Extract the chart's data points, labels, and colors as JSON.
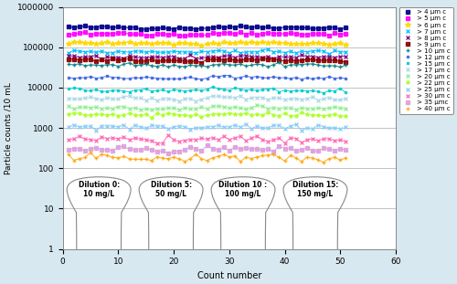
{
  "title": "",
  "xlabel": "Count number",
  "ylabel": "Particle counts /10 mL",
  "xlim": [
    0,
    60
  ],
  "ylim_log": [
    1,
    1000000
  ],
  "x_ticks": [
    0,
    10,
    20,
    30,
    40,
    50,
    60
  ],
  "y_ticks": [
    1,
    10,
    100,
    1000,
    10000,
    100000,
    1000000
  ],
  "y_tick_labels": [
    "1",
    "10",
    "100",
    "1000",
    "10000",
    "100000",
    "1000000"
  ],
  "series": [
    {
      "label": "> 4 μm c",
      "color": "#00008B",
      "marker": "s",
      "base_val": 320000,
      "noise": 0.04,
      "marker_size": 3
    },
    {
      "label": "> 5 μm c",
      "color": "#FF00FF",
      "marker": "s",
      "base_val": 220000,
      "noise": 0.04,
      "marker_size": 3
    },
    {
      "label": "> 6 μm c",
      "color": "#FFD700",
      "marker": "*",
      "base_val": 130000,
      "noise": 0.04,
      "marker_size": 4
    },
    {
      "label": "> 7 μm c",
      "color": "#00BFFF",
      "marker": "x",
      "base_val": 80000,
      "noise": 0.05,
      "marker_size": 3
    },
    {
      "label": "> 8 μm c",
      "color": "#800080",
      "marker": "x",
      "base_val": 60000,
      "noise": 0.05,
      "marker_size": 3
    },
    {
      "label": "> 9 μm c",
      "color": "#8B0000",
      "marker": "s",
      "base_val": 50000,
      "noise": 0.05,
      "marker_size": 3
    },
    {
      "label": "> 10 μm c",
      "color": "#008080",
      "marker": "+",
      "base_val": 38000,
      "noise": 0.05,
      "marker_size": 3
    },
    {
      "label": "> 12 μm c",
      "color": "#4169E1",
      "marker": "s",
      "base_val": 18000,
      "noise": 0.04,
      "marker_size": 2
    },
    {
      "label": "> 15 μm c",
      "color": "#00CED1",
      "marker": "s",
      "base_val": 9000,
      "noise": 0.06,
      "marker_size": 2
    },
    {
      "label": "> 17 μm c",
      "color": "#ADD8E6",
      "marker": "x",
      "base_val": 5500,
      "noise": 0.06,
      "marker_size": 3
    },
    {
      "label": "> 20 μm c",
      "color": "#90EE90",
      "marker": "x",
      "base_val": 3200,
      "noise": 0.06,
      "marker_size": 3
    },
    {
      "label": "> 22 μm c",
      "color": "#ADFF2F",
      "marker": "*",
      "base_val": 2200,
      "noise": 0.06,
      "marker_size": 3
    },
    {
      "label": "> 25 μm c",
      "color": "#87CEFA",
      "marker": "x",
      "base_val": 1100,
      "noise": 0.07,
      "marker_size": 3
    },
    {
      "label": "> 30 μm c",
      "color": "#FF69B4",
      "marker": "x",
      "base_val": 550,
      "noise": 0.09,
      "marker_size": 3
    },
    {
      "label": "> 35 μmc",
      "color": "#DDA0DD",
      "marker": "s",
      "base_val": 300,
      "noise": 0.1,
      "marker_size": 3
    },
    {
      "label": "> 40 μm c",
      "color": "#FFA500",
      "marker": "+",
      "base_val": 190,
      "noise": 0.12,
      "marker_size": 3
    }
  ],
  "dilution_labels": [
    {
      "x_center": 6.5,
      "text": "Dilution 0:\n10 mg/L"
    },
    {
      "x_center": 19.5,
      "text": "Dilution 5:\n50 mg/L"
    },
    {
      "x_center": 32.5,
      "text": "Dilution 10 :\n100 mg/L"
    },
    {
      "x_center": 45.5,
      "text": "Dilution 15:\n150 mg/L"
    }
  ],
  "background_color": "#D8E8F0",
  "plot_bg_color": "#FFFFFF",
  "grid_color": "#AAAAAA"
}
